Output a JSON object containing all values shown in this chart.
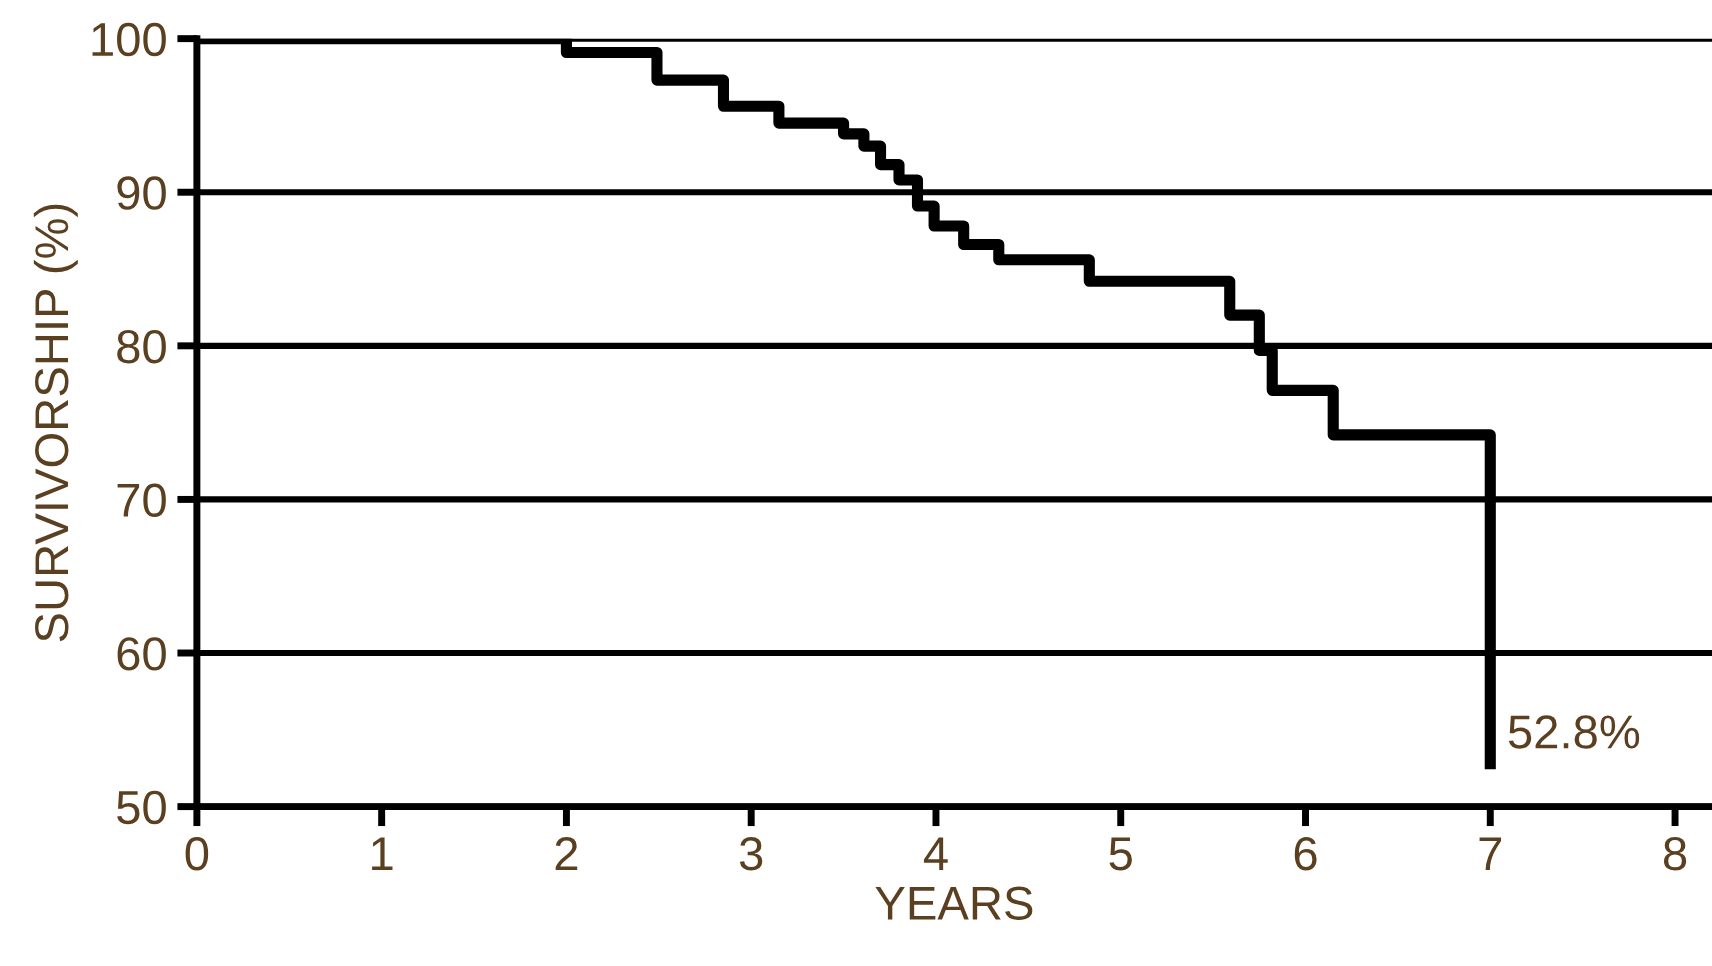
{
  "chart_data": {
    "type": "step",
    "xlabel": "YEARS",
    "ylabel": "SURVIVORSHIP (%)",
    "x": [
      0,
      2.0,
      2.49,
      2.85,
      3.15,
      3.5,
      3.61,
      3.7,
      3.8,
      3.9,
      3.99,
      4.15,
      4.34,
      4.83,
      5.59,
      5.75,
      5.82,
      6.15,
      7.0
    ],
    "series": [
      {
        "color": "#000000",
        "values": [
          100,
          99.1,
          97.3,
          95.6,
          94.5,
          93.8,
          93.0,
          91.8,
          90.8,
          89.1,
          87.8,
          86.6,
          85.6,
          84.2,
          82.0,
          79.7,
          77.1,
          74.2,
          52.8
        ]
      }
    ],
    "xlim": [
      0,
      8.2
    ],
    "ylim": [
      50,
      100
    ],
    "xticks": [
      0,
      1,
      2,
      3,
      4,
      5,
      6,
      7,
      8
    ],
    "yticks": [
      50,
      60,
      70,
      80,
      90,
      100
    ],
    "grid": "y",
    "marker": "none",
    "line_style": "solid",
    "annotations": [
      {
        "text": "52.8%",
        "x": 7,
        "y": 52.8
      }
    ]
  }
}
